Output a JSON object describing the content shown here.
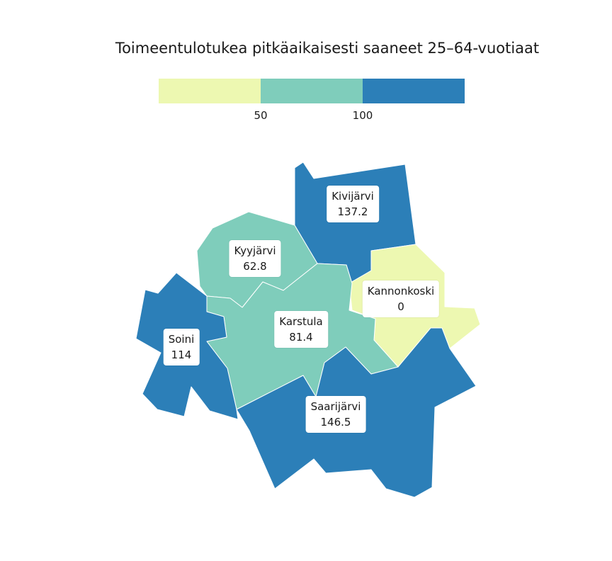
{
  "title": "Toimeentulotukea pitkäaikaisesti saaneet 25–64-vuotiaat",
  "legend": {
    "colors": [
      "#edf8b1",
      "#7fcdbb",
      "#2c7fb8"
    ],
    "breaks": [
      "50",
      "100"
    ]
  },
  "municipalities": [
    {
      "name": "Kivijärvi",
      "value": "137.2",
      "color": "#2c7fb8"
    },
    {
      "name": "Kyyjärvi",
      "value": "62.8",
      "color": "#7fcdbb"
    },
    {
      "name": "Kannonkoski",
      "value": "0",
      "color": "#edf8b1"
    },
    {
      "name": "Karstula",
      "value": "81.4",
      "color": "#7fcdbb"
    },
    {
      "name": "Soini",
      "value": "114",
      "color": "#2c7fb8"
    },
    {
      "name": "Saarijärvi",
      "value": "146.5",
      "color": "#2c7fb8"
    }
  ]
}
